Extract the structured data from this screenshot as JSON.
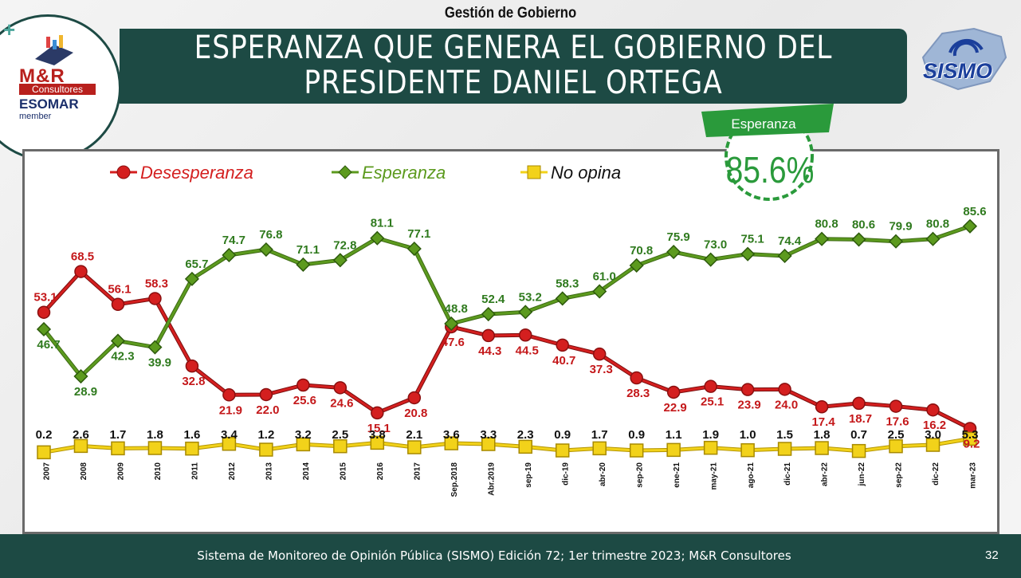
{
  "header": {
    "section_label": "Gestión de Gobierno",
    "title_line1": "ESPERANZA QUE GENERA EL GOBIERNO DEL",
    "title_line2": "PRESIDENTE DANIEL ORTEGA"
  },
  "logo_left": {
    "name": "M&R",
    "subtitle": "Consultores",
    "esomar": "ESOMAR",
    "member": "member"
  },
  "logo_right": {
    "name": "SISMO"
  },
  "badge": {
    "label": "Esperanza",
    "value": "85.6%"
  },
  "footer": {
    "text": "Sistema de Monitoreo de Opinión Pública (SISMO) Edición 72;  1er trimestre 2023; M&R Consultores",
    "page_number": "32"
  },
  "colors": {
    "desesperanza": "#d41f1f",
    "esperanza": "#5c9a1e",
    "no_opina": "#f2d21a",
    "title_bar": "#1d4a44"
  },
  "chart_data": {
    "type": "line",
    "categories": [
      "2007",
      "2008",
      "2009",
      "2010",
      "2011",
      "2012",
      "2013",
      "2014",
      "2015",
      "2016",
      "2017",
      "Sep.2018",
      "Abr.2019",
      "sep-19",
      "dic-19",
      "abr-20",
      "sep-20",
      "ene-21",
      "may-21",
      "ago-21",
      "dic-21",
      "abr-22",
      "jun-22",
      "sep-22",
      "dic-22",
      "mar-23"
    ],
    "series": [
      {
        "name": "Desesperanza",
        "values": [
          53.1,
          68.5,
          56.1,
          58.3,
          32.8,
          21.9,
          22.0,
          25.6,
          24.6,
          15.1,
          20.8,
          47.6,
          44.3,
          44.5,
          40.7,
          37.3,
          28.3,
          22.9,
          25.1,
          23.9,
          24.0,
          17.4,
          18.7,
          17.6,
          16.2,
          9.2
        ]
      },
      {
        "name": "Esperanza",
        "values": [
          46.7,
          28.9,
          42.3,
          39.9,
          65.7,
          74.7,
          76.8,
          71.1,
          72.8,
          81.1,
          77.1,
          48.8,
          52.4,
          53.2,
          58.3,
          61.0,
          70.8,
          75.9,
          73.0,
          75.1,
          74.4,
          80.8,
          80.6,
          79.9,
          80.8,
          85.6
        ]
      },
      {
        "name": "No opina",
        "values": [
          0.2,
          2.6,
          1.7,
          1.8,
          1.6,
          3.4,
          1.2,
          3.2,
          2.5,
          3.8,
          2.1,
          3.6,
          3.3,
          2.3,
          0.9,
          1.7,
          0.9,
          1.1,
          1.9,
          1.0,
          1.5,
          1.8,
          0.7,
          2.5,
          3.0,
          5.3
        ]
      }
    ],
    "legend_position": "top-left",
    "grid": false
  }
}
